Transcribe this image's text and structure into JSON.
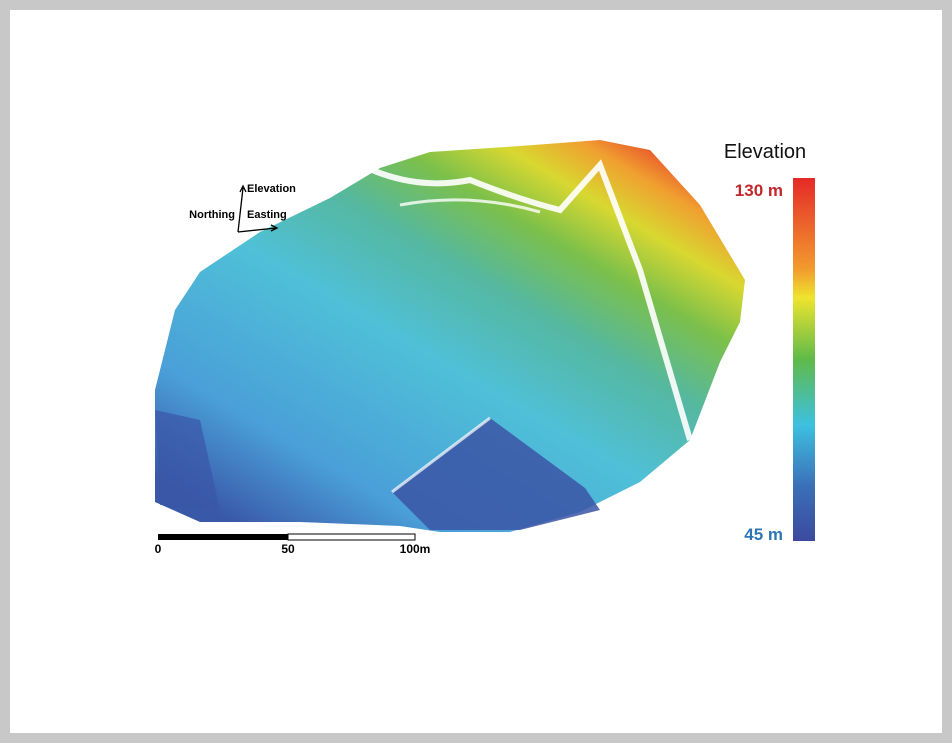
{
  "legend": {
    "title": "Elevation",
    "max_label": "130 m",
    "min_label": "45 m"
  },
  "orientation": {
    "up": "Elevation",
    "left": "Northing",
    "right": "Easting"
  },
  "scale_bar": {
    "labels": [
      "0",
      "50",
      "100m"
    ]
  }
}
